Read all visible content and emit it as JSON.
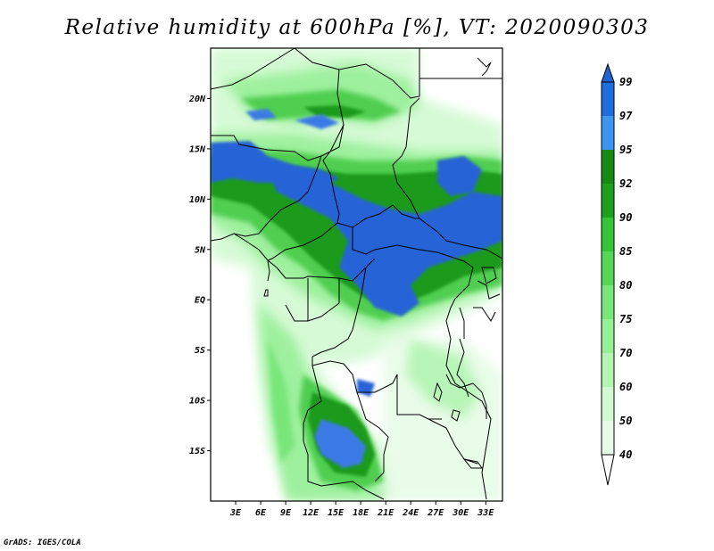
{
  "title": "Relative humidity at 600hPa [%], VT: 2020090303",
  "footer": "GrADS: IGES/COLA",
  "axes": {
    "lat_labels": [
      "20N",
      "15N",
      "10N",
      "5N",
      "EQ",
      "5S",
      "10S",
      "15S"
    ],
    "lat_values": [
      20,
      15,
      10,
      5,
      0,
      -5,
      -10,
      -15
    ],
    "lon_labels": [
      "3E",
      "6E",
      "9E",
      "12E",
      "15E",
      "18E",
      "21E",
      "24E",
      "27E",
      "30E",
      "33E"
    ],
    "lon_values": [
      3,
      6,
      9,
      12,
      15,
      18,
      21,
      24,
      27,
      30,
      33
    ],
    "lon_range": [
      0,
      35
    ],
    "lat_range": [
      -20,
      25
    ]
  },
  "colorbar": {
    "levels": [
      "99",
      "97",
      "95",
      "92",
      "90",
      "85",
      "80",
      "75",
      "70",
      "60",
      "50",
      "40"
    ],
    "colors": [
      "#1e64d2",
      "#1e6edc",
      "#3c96f0",
      "#148c14",
      "#1ea01e",
      "#37c337",
      "#55d755",
      "#78e678",
      "#96f096",
      "#b4f5b4",
      "#d2fad2",
      "#e6fce6",
      "#ffffff"
    ],
    "top_arrow_color": "#1e64d2"
  },
  "colors": {
    "blue_high": "#2563d6",
    "blue_mid": "#3a7ae4",
    "green_dark": "#1e9a1e",
    "green_mid": "#4fce4f",
    "green_light": "#9df09d",
    "green_pale": "#d6fad6",
    "borders": "#000000"
  }
}
